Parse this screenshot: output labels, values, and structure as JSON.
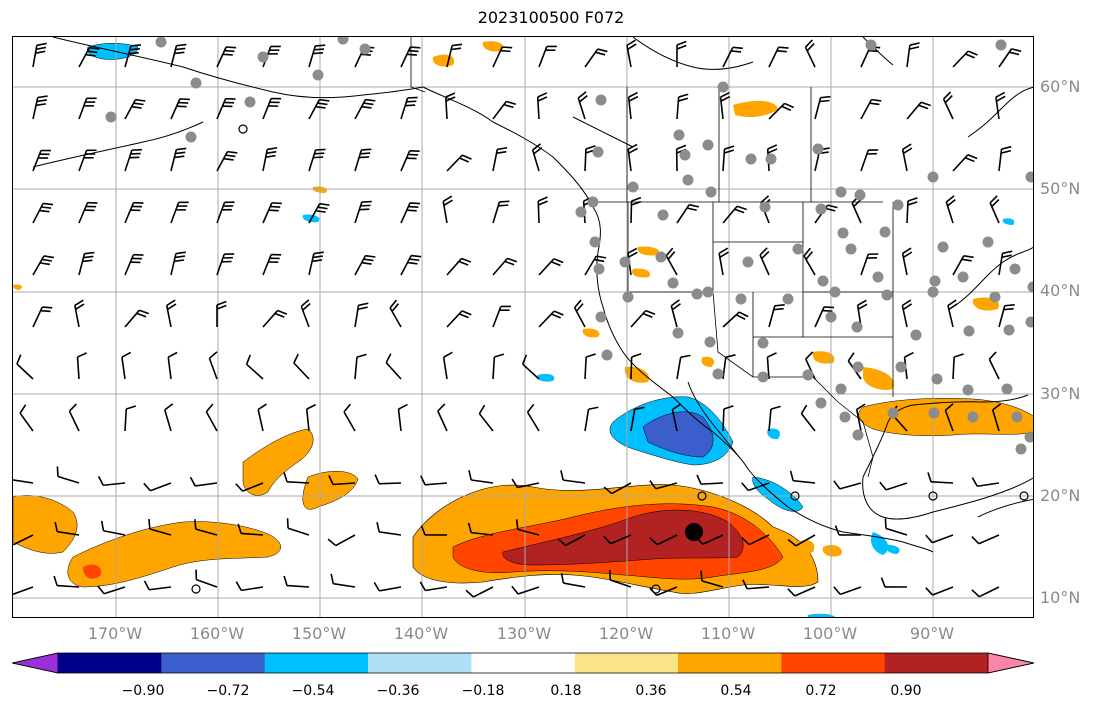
{
  "title": "2023100500 F072",
  "lat_labels": [
    "60°N",
    "50°N",
    "40°N",
    "30°N",
    "20°N",
    "10°N"
  ],
  "lon_labels": [
    "170°W",
    "160°W",
    "150°W",
    "140°W",
    "130°W",
    "120°W",
    "110°W",
    "100°W",
    "90°W"
  ],
  "colorbar": {
    "tick_labels": [
      "−0.90",
      "−0.72",
      "−0.54",
      "−0.36",
      "−0.18",
      "0.18",
      "0.36",
      "0.54",
      "0.72",
      "0.90"
    ],
    "colors": [
      "#9b30d9",
      "#00008b",
      "#3a5fcd",
      "#00bfff",
      "#aee0f8",
      "#ffffff",
      "#fbe58a",
      "#ffa500",
      "#ff4500",
      "#b22222",
      "#ff85a8"
    ]
  },
  "colors": {
    "grid": "#a8a8a8",
    "coast": "#000000",
    "station": "#8c8c8c"
  }
}
